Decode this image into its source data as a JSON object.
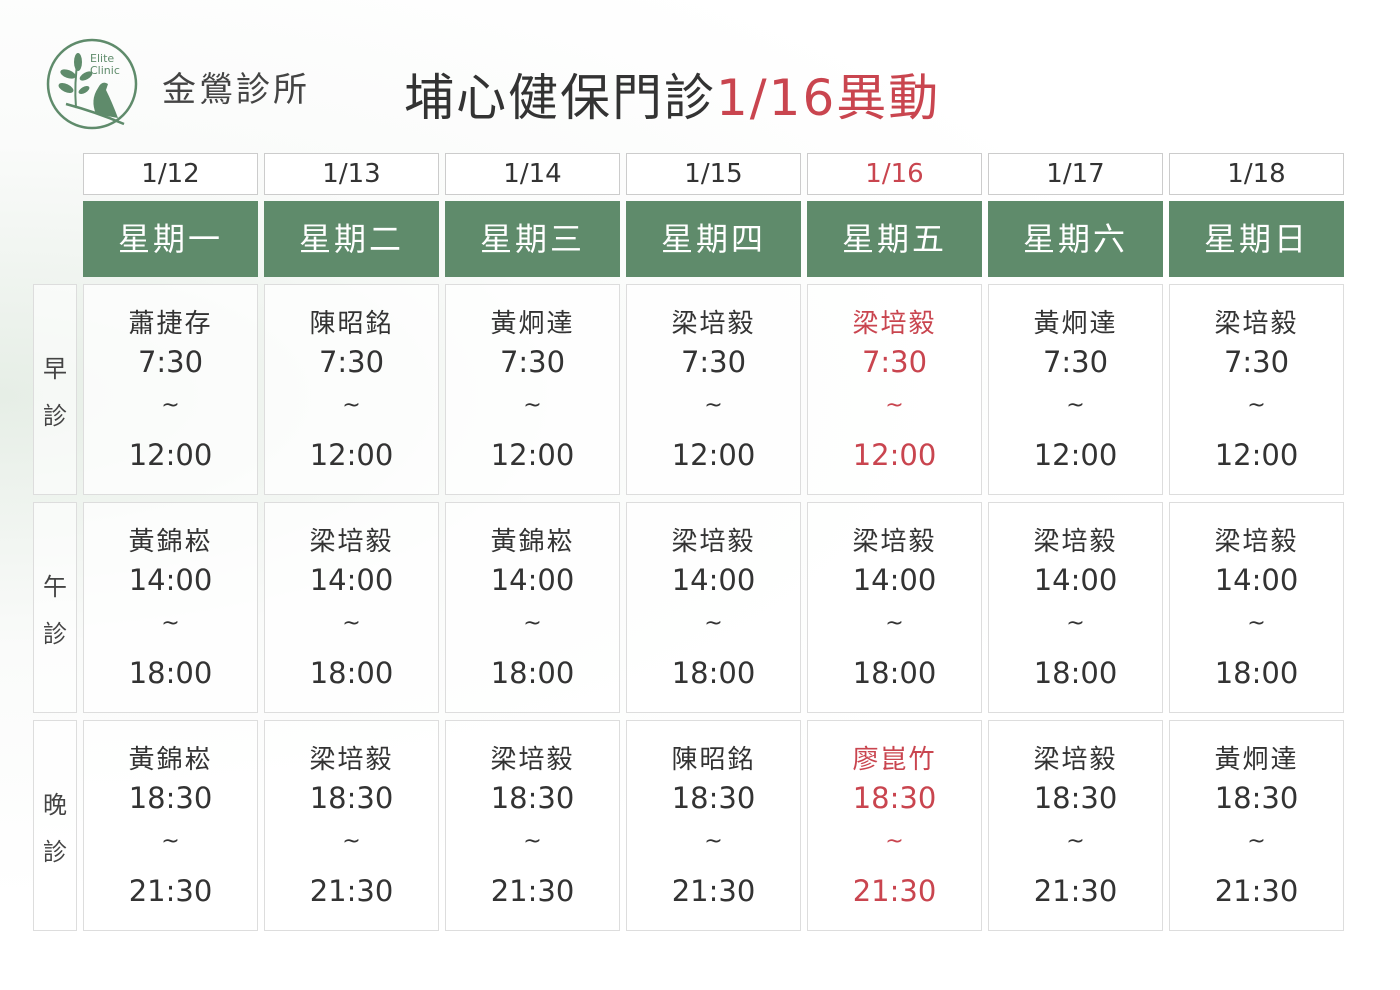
{
  "clinic": {
    "logo_text": "Elite Clinic",
    "name": "金鶯診所"
  },
  "title": {
    "main": "埔心健保門診",
    "highlight": "1/16異動"
  },
  "colors": {
    "header_green": "#5f8b6b",
    "change_red": "#c9454f"
  },
  "days": [
    {
      "date": "1/12",
      "weekday": "星期一"
    },
    {
      "date": "1/13",
      "weekday": "星期二"
    },
    {
      "date": "1/14",
      "weekday": "星期三"
    },
    {
      "date": "1/15",
      "weekday": "星期四"
    },
    {
      "date": "1/16",
      "weekday": "星期五",
      "changed": true
    },
    {
      "date": "1/17",
      "weekday": "星期六"
    },
    {
      "date": "1/18",
      "weekday": "星期日"
    }
  ],
  "sessions": [
    {
      "label": [
        "早",
        "診"
      ],
      "start": "7:30",
      "end": "12:00",
      "tilde": "~",
      "doctors": [
        "蕭捷存",
        "陳昭銘",
        "黃炯達",
        "梁培毅",
        "梁培毅",
        "黃炯達",
        "梁培毅"
      ],
      "changed": [
        4
      ]
    },
    {
      "label": [
        "午",
        "診"
      ],
      "start": "14:00",
      "end": "18:00",
      "tilde": "~",
      "doctors": [
        "黃錦崧",
        "梁培毅",
        "黃錦崧",
        "梁培毅",
        "梁培毅",
        "梁培毅",
        "梁培毅"
      ],
      "changed": []
    },
    {
      "label": [
        "晚",
        "診"
      ],
      "start": "18:30",
      "end": "21:30",
      "tilde": "~",
      "doctors": [
        "黃錦崧",
        "梁培毅",
        "梁培毅",
        "陳昭銘",
        "廖崑竹",
        "梁培毅",
        "黃炯達"
      ],
      "changed": [
        4
      ]
    }
  ]
}
